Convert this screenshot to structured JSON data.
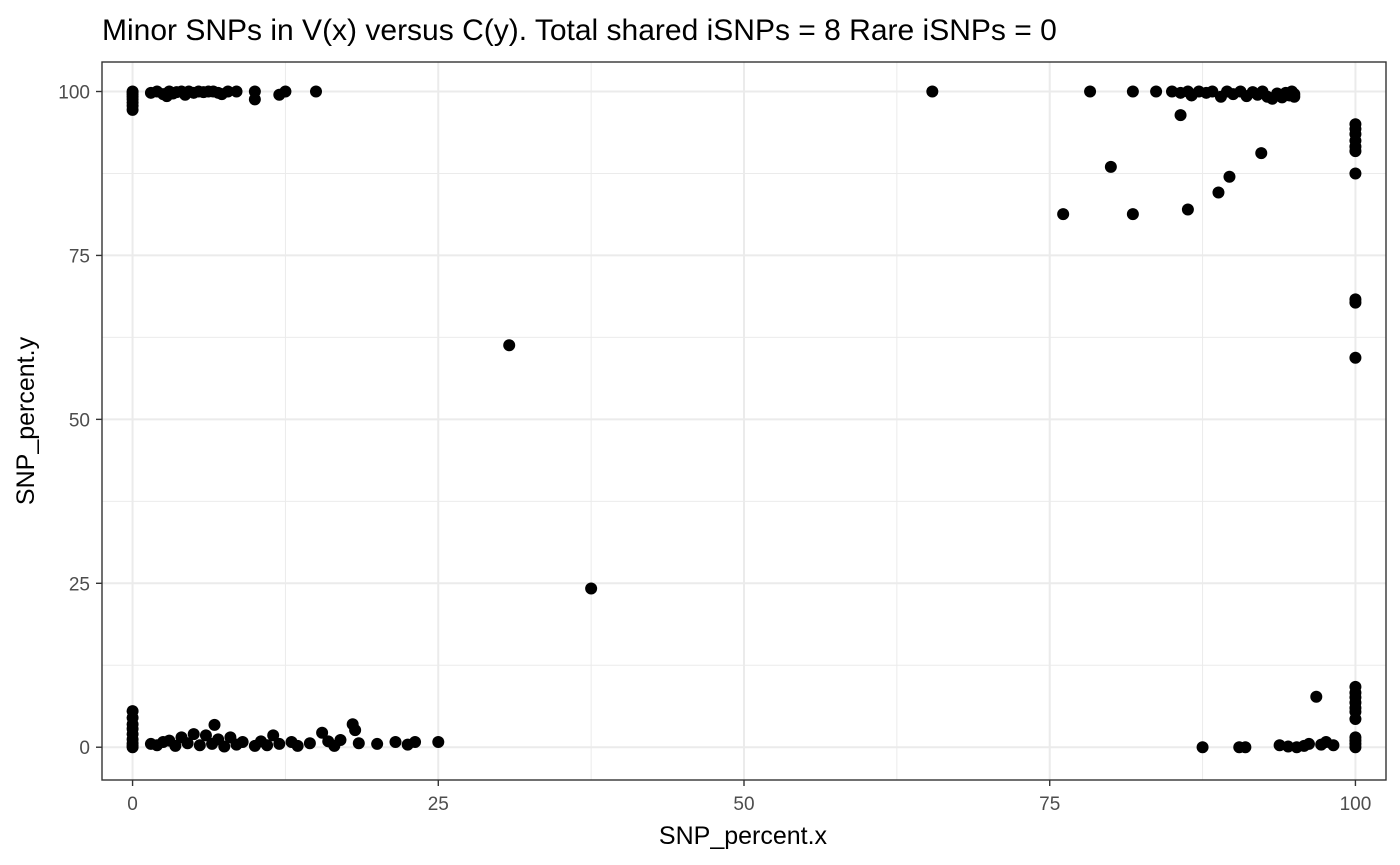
{
  "chart_data": {
    "type": "scatter",
    "title": "Minor SNPs in V(x) versus C(y). Total shared iSNPs =  8  Rare iSNPs =  0",
    "xlabel": "SNP_percent.x",
    "ylabel": "SNP_percent.y",
    "xlim": [
      -2.5,
      102.5
    ],
    "ylim": [
      -5,
      104.5
    ],
    "x_ticks": [
      0,
      25,
      50,
      75,
      100
    ],
    "y_ticks": [
      0,
      25,
      50,
      75,
      100
    ],
    "x_tick_labels": [
      "0",
      "25",
      "50",
      "75",
      "100"
    ],
    "y_tick_labels": [
      "0",
      "25",
      "50",
      "75",
      "100"
    ],
    "grid": true,
    "theme": "bw",
    "point_color": "#000000",
    "series": [
      {
        "points": [
          [
            0,
            100
          ],
          [
            0,
            99.8
          ],
          [
            0,
            99.5
          ],
          [
            0,
            99.2
          ],
          [
            0,
            98.8
          ],
          [
            0,
            98.3
          ],
          [
            0,
            97.8
          ],
          [
            0,
            97.2
          ],
          [
            1.5,
            99.8
          ],
          [
            2,
            100
          ],
          [
            2.5,
            99.6
          ],
          [
            2.8,
            99.3
          ],
          [
            3,
            100
          ],
          [
            3.3,
            99.7
          ],
          [
            3.6,
            99.9
          ],
          [
            4,
            100
          ],
          [
            4.3,
            99.5
          ],
          [
            4.6,
            100
          ],
          [
            5,
            99.8
          ],
          [
            5.4,
            100
          ],
          [
            5.8,
            99.9
          ],
          [
            6.2,
            100
          ],
          [
            6.6,
            100
          ],
          [
            7,
            99.8
          ],
          [
            7.3,
            99.6
          ],
          [
            7.8,
            100
          ],
          [
            8.5,
            100
          ],
          [
            10,
            100
          ],
          [
            10,
            98.8
          ],
          [
            12,
            99.5
          ],
          [
            12.5,
            100
          ],
          [
            15,
            100
          ],
          [
            65.4,
            100
          ],
          [
            78.3,
            100
          ],
          [
            81.8,
            100
          ],
          [
            83.7,
            100
          ],
          [
            85,
            100
          ],
          [
            85.7,
            99.8
          ],
          [
            86.3,
            100
          ],
          [
            86.6,
            99.4
          ],
          [
            87.2,
            100
          ],
          [
            87.8,
            99.8
          ],
          [
            88.3,
            100
          ],
          [
            89,
            99.2
          ],
          [
            89.5,
            100
          ],
          [
            90,
            99.6
          ],
          [
            90.6,
            100
          ],
          [
            91.1,
            99.3
          ],
          [
            91.6,
            99.9
          ],
          [
            92,
            99.5
          ],
          [
            92.4,
            100
          ],
          [
            92.8,
            99.2
          ],
          [
            93.2,
            98.9
          ],
          [
            93.6,
            99.7
          ],
          [
            94,
            99.1
          ],
          [
            94.3,
            99.8
          ],
          [
            94.6,
            99.4
          ],
          [
            94.8,
            100
          ],
          [
            95,
            99.6
          ],
          [
            95,
            99.2
          ],
          [
            85.7,
            96.4
          ],
          [
            92.3,
            90.6
          ],
          [
            89.7,
            87
          ],
          [
            80,
            88.5
          ],
          [
            88.8,
            84.6
          ],
          [
            86.3,
            82
          ],
          [
            76.1,
            81.3
          ],
          [
            81.8,
            81.3
          ],
          [
            100,
            95
          ],
          [
            100,
            94.3
          ],
          [
            100,
            93.5
          ],
          [
            100,
            92.5
          ],
          [
            100,
            91.6
          ],
          [
            100,
            90.9
          ],
          [
            100,
            87.5
          ],
          [
            100,
            68.3
          ],
          [
            100,
            67.8
          ],
          [
            100,
            59.4
          ],
          [
            30.8,
            61.3
          ],
          [
            37.5,
            24.2
          ],
          [
            0,
            5.5
          ],
          [
            0,
            4.5
          ],
          [
            0,
            3.5
          ],
          [
            0,
            2.8
          ],
          [
            0,
            2
          ],
          [
            0,
            1.2
          ],
          [
            0,
            0.6
          ],
          [
            0,
            0.2
          ],
          [
            0,
            0
          ],
          [
            1.5,
            0.5
          ],
          [
            2,
            0.3
          ],
          [
            2.5,
            0.8
          ],
          [
            3,
            1
          ],
          [
            3.5,
            0.2
          ],
          [
            4,
            1.5
          ],
          [
            4.5,
            0.6
          ],
          [
            5,
            2
          ],
          [
            5.5,
            0.3
          ],
          [
            6,
            1.8
          ],
          [
            6.5,
            0.5
          ],
          [
            6.7,
            3.4
          ],
          [
            7,
            1.2
          ],
          [
            7.5,
            0.1
          ],
          [
            8,
            1.5
          ],
          [
            8.5,
            0.4
          ],
          [
            9,
            0.8
          ],
          [
            10,
            0.2
          ],
          [
            10.5,
            0.9
          ],
          [
            11,
            0.3
          ],
          [
            11.5,
            1.8
          ],
          [
            12,
            0.5
          ],
          [
            13,
            0.8
          ],
          [
            13.5,
            0.2
          ],
          [
            14.5,
            0.6
          ],
          [
            15.5,
            2.2
          ],
          [
            16,
            0.9
          ],
          [
            16.5,
            0.2
          ],
          [
            17,
            1.1
          ],
          [
            18,
            3.5
          ],
          [
            18.2,
            2.6
          ],
          [
            18.5,
            0.6
          ],
          [
            20,
            0.5
          ],
          [
            21.5,
            0.8
          ],
          [
            22.5,
            0.4
          ],
          [
            23.1,
            0.8
          ],
          [
            25,
            0.8
          ],
          [
            87.5,
            0
          ],
          [
            90.5,
            0
          ],
          [
            91,
            0
          ],
          [
            93.8,
            0.3
          ],
          [
            94.5,
            0.1
          ],
          [
            95.2,
            0
          ],
          [
            95.8,
            0.2
          ],
          [
            96.2,
            0.5
          ],
          [
            96.8,
            7.7
          ],
          [
            97.2,
            0.4
          ],
          [
            97.6,
            0.8
          ],
          [
            98.2,
            0.3
          ],
          [
            100,
            9.2
          ],
          [
            100,
            8.3
          ],
          [
            100,
            7.6
          ],
          [
            100,
            6.8
          ],
          [
            100,
            6
          ],
          [
            100,
            5.4
          ],
          [
            100,
            4.3
          ],
          [
            100,
            1.5
          ],
          [
            100,
            1
          ],
          [
            100,
            0.5
          ],
          [
            100,
            0
          ]
        ]
      }
    ]
  }
}
